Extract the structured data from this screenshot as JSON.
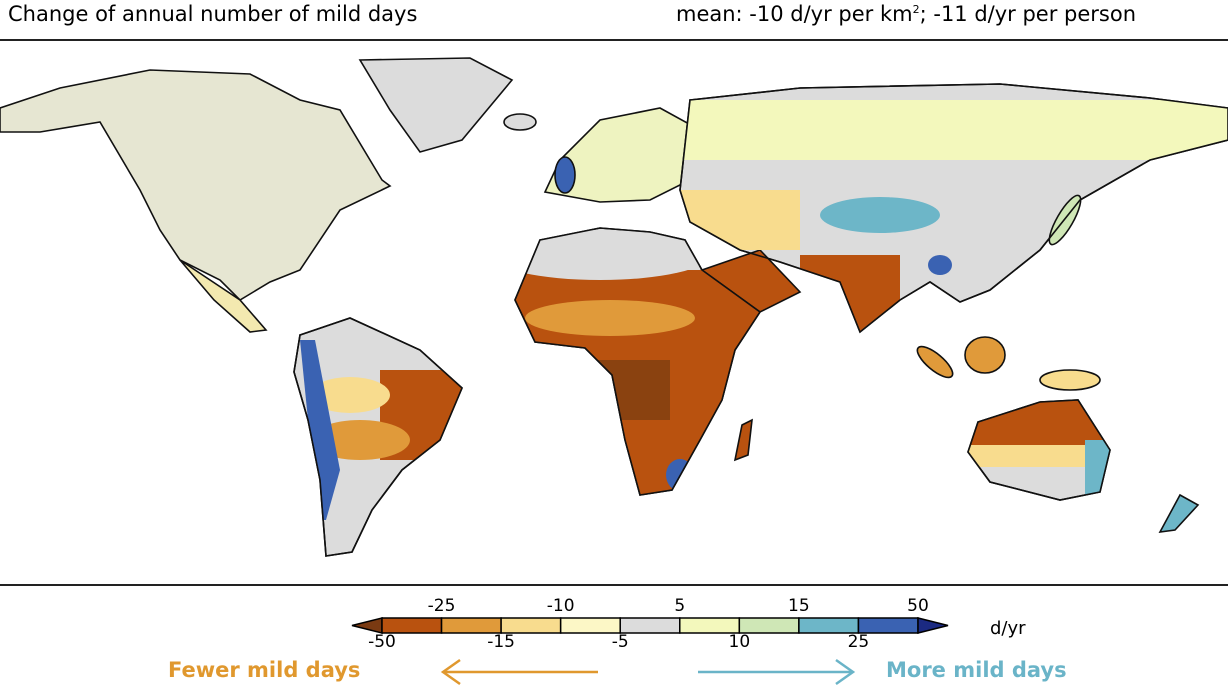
{
  "title": "Change of annual number of mild days",
  "summary": {
    "prefix": "mean: -10 d/yr per km",
    "superscript": "2",
    "suffix": "; -11 d/yr per person"
  },
  "colorbar": {
    "unit": "d/yr",
    "bounds": [
      -50,
      -25,
      -15,
      -10,
      -5,
      5,
      10,
      15,
      25,
      50
    ],
    "top_labels": [
      "-25",
      "-10",
      "5",
      "15",
      "50"
    ],
    "bottom_labels": [
      "-50",
      "-15",
      "-5",
      "10",
      "25"
    ],
    "under_color": "#7a3a12",
    "colors": [
      "#b9520f",
      "#e09a3a",
      "#f8dc8e",
      "#fcf7c6",
      "#dcdcdc",
      "#f3f8bc",
      "#cfe7b6",
      "#6db6c8",
      "#3a62b2"
    ],
    "over_color": "#1b2a82"
  },
  "legend": {
    "fewer": {
      "label": "Fewer mild days",
      "color": "#e0982e"
    },
    "more": {
      "label": "More mild days",
      "color": "#6ab4c8"
    }
  }
}
